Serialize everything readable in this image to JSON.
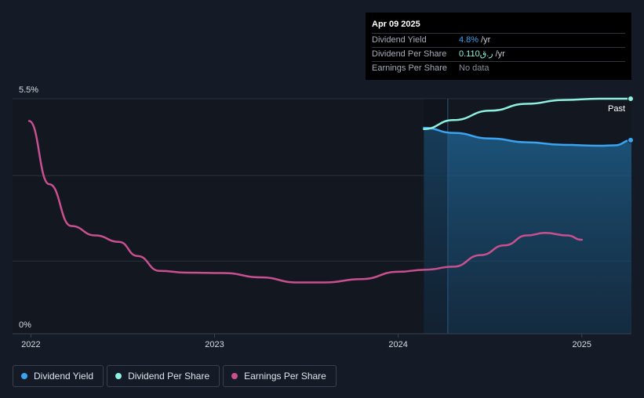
{
  "chart_data": {
    "type": "line",
    "y_axis": {
      "min": 0,
      "max": 5.5,
      "ticks": [
        {
          "value": 5.5,
          "label": "5.5%"
        },
        {
          "value": 0,
          "label": "0%"
        }
      ]
    },
    "x_axis": {
      "min": 2021.9,
      "max": 2025.27,
      "ticks": [
        {
          "value": 2022,
          "label": "2022"
        },
        {
          "value": 2023,
          "label": "2023"
        },
        {
          "value": 2024,
          "label": "2024"
        },
        {
          "value": 2025,
          "label": "2025"
        }
      ]
    },
    "gridlines_y": [
      5.5,
      3.7,
      1.7
    ],
    "past_region": {
      "start": 2024.14,
      "highlight_start": 2024.27,
      "end": 2025.27,
      "label": "Past"
    },
    "series": [
      {
        "name": "Dividend Yield",
        "color": "#3ba3f0",
        "end_marker": true,
        "points": [
          [
            2024.14,
            4.82
          ],
          [
            2024.3,
            4.7
          ],
          [
            2024.5,
            4.57
          ],
          [
            2024.7,
            4.48
          ],
          [
            2024.9,
            4.42
          ],
          [
            2025.1,
            4.4
          ],
          [
            2025.18,
            4.41
          ],
          [
            2025.27,
            4.53
          ]
        ]
      },
      {
        "name": "Dividend Per Share",
        "color": "#8ef0e0",
        "end_marker": true,
        "points": [
          [
            2024.14,
            4.79
          ],
          [
            2024.3,
            5.0
          ],
          [
            2024.5,
            5.22
          ],
          [
            2024.7,
            5.38
          ],
          [
            2024.9,
            5.47
          ],
          [
            2025.1,
            5.5
          ],
          [
            2025.27,
            5.5
          ]
        ]
      },
      {
        "name": "Earnings Per Share",
        "color": "#c8508f",
        "end_marker": false,
        "points": [
          [
            2021.99,
            4.98
          ],
          [
            2022.1,
            3.5
          ],
          [
            2022.22,
            2.52
          ],
          [
            2022.35,
            2.3
          ],
          [
            2022.48,
            2.15
          ],
          [
            2022.58,
            1.82
          ],
          [
            2022.7,
            1.47
          ],
          [
            2022.85,
            1.43
          ],
          [
            2023.05,
            1.42
          ],
          [
            2023.25,
            1.32
          ],
          [
            2023.45,
            1.2
          ],
          [
            2023.6,
            1.2
          ],
          [
            2023.8,
            1.28
          ],
          [
            2024.0,
            1.45
          ],
          [
            2024.15,
            1.5
          ],
          [
            2024.3,
            1.57
          ],
          [
            2024.45,
            1.84
          ],
          [
            2024.58,
            2.07
          ],
          [
            2024.7,
            2.3
          ],
          [
            2024.8,
            2.36
          ],
          [
            2024.92,
            2.3
          ],
          [
            2025.0,
            2.2
          ]
        ]
      }
    ]
  },
  "tooltip": {
    "date": "Apr 09 2025",
    "rows": [
      {
        "label": "Dividend Yield",
        "value": "4.8%",
        "unit": "/yr"
      },
      {
        "label": "Dividend Per Share",
        "value": "0.110ر.ق",
        "unit": "/yr"
      },
      {
        "label": "Earnings Per Share",
        "value": "No data",
        "unit": ""
      }
    ]
  },
  "legend": [
    {
      "label": "Dividend Yield",
      "color": "#3ba3f0"
    },
    {
      "label": "Dividend Per Share",
      "color": "#8ef0e0"
    },
    {
      "label": "Earnings Per Share",
      "color": "#c8508f"
    }
  ]
}
